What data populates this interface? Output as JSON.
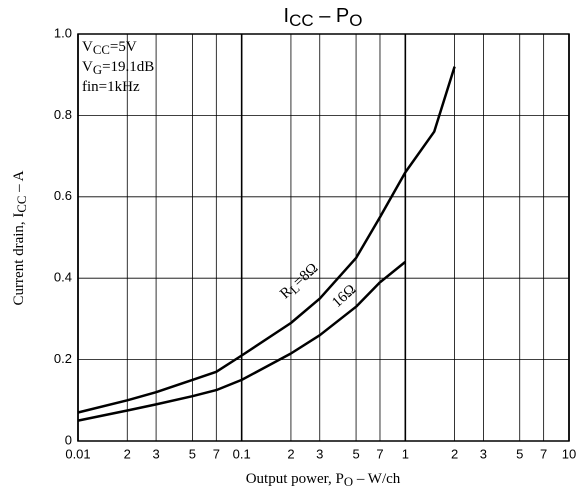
{
  "chart_data": {
    "type": "line",
    "title": [
      "I",
      "CC",
      " – P",
      "O"
    ],
    "x_label": [
      "Output power, P",
      "O",
      " – W/ch"
    ],
    "y_label": [
      "Current drain, I",
      "CC",
      " – A"
    ],
    "annotations": [
      [
        "V",
        "CC",
        "=5V"
      ],
      [
        "V",
        "G",
        "=19.1dB"
      ],
      [
        "fin=1kHz"
      ]
    ],
    "log_x": true,
    "grid": true,
    "xlim": [
      0.01,
      10
    ],
    "ylim": [
      0,
      1
    ],
    "xticks": [
      0.01,
      {
        "value": 0.02,
        "label": "2"
      },
      {
        "value": 0.03,
        "label": "3"
      },
      {
        "value": 0.05,
        "label": "5"
      },
      {
        "value": 0.07,
        "label": "7"
      },
      0.1,
      {
        "value": 0.2,
        "label": "2"
      },
      {
        "value": 0.3,
        "label": "3"
      },
      {
        "value": 0.5,
        "label": "5"
      },
      {
        "value": 0.7,
        "label": "7"
      },
      1,
      {
        "value": 2,
        "label": "2"
      },
      {
        "value": 3,
        "label": "3"
      },
      {
        "value": 5,
        "label": "5"
      },
      {
        "value": 7,
        "label": "7"
      },
      10
    ],
    "yticks": [
      0,
      0.2,
      0.4,
      0.6,
      0.8,
      {
        "value": 1,
        "label": "1.0"
      }
    ],
    "series": [
      {
        "label": [
          "R",
          "L",
          "=8Ω"
        ],
        "color": "#000000",
        "x": [
          0.01,
          0.02,
          0.03,
          0.05,
          0.07,
          0.1,
          0.2,
          0.3,
          0.5,
          0.7,
          1,
          1.5,
          2
        ],
        "values": [
          0.07,
          0.1,
          0.12,
          0.15,
          0.17,
          0.21,
          0.29,
          0.35,
          0.45,
          0.55,
          0.66,
          0.76,
          0.92
        ]
      },
      {
        "label": [
          "16Ω"
        ],
        "color": "#000000",
        "x": [
          0.01,
          0.02,
          0.03,
          0.05,
          0.07,
          0.1,
          0.2,
          0.3,
          0.5,
          0.7,
          1
        ],
        "values": [
          0.05,
          0.075,
          0.09,
          0.11,
          0.125,
          0.15,
          0.215,
          0.26,
          0.33,
          0.39,
          0.44
        ]
      }
    ]
  }
}
